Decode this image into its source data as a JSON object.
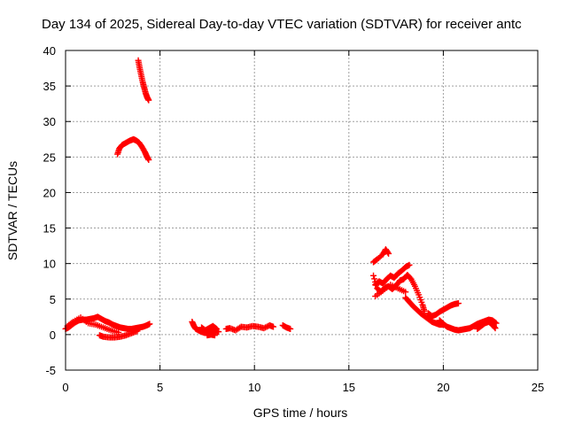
{
  "chart_data": {
    "type": "scatter",
    "title": "Day 134 of 2025, Sidereal Day-to-day VTEC variation (SDTVAR) for receiver antc",
    "xlabel": "GPS time / hours",
    "ylabel": "SDTVAR / TECUs",
    "xlim": [
      0,
      25
    ],
    "ylim": [
      -5,
      40
    ],
    "xticks": [
      "0",
      "5",
      "10",
      "15",
      "20",
      "25"
    ],
    "yticks": [
      "-5",
      "0",
      "5",
      "10",
      "15",
      "20",
      "25",
      "30",
      "35",
      "40"
    ],
    "grid": true,
    "marker": "plus",
    "color": "#ff0000",
    "series": [
      {
        "name": "SDTVAR",
        "segments": [
          [
            [
              3.85,
              38.6
            ],
            [
              3.92,
              37.6
            ],
            [
              4.0,
              36.6
            ],
            [
              4.08,
              35.6
            ],
            [
              4.16,
              34.8
            ],
            [
              4.24,
              34.0
            ],
            [
              4.32,
              33.4
            ],
            [
              4.4,
              33.0
            ]
          ],
          [
            [
              2.75,
              25.4
            ],
            [
              2.85,
              26.2
            ],
            [
              3.0,
              26.7
            ],
            [
              3.2,
              27.0
            ],
            [
              3.4,
              27.3
            ],
            [
              3.6,
              27.5
            ],
            [
              3.75,
              27.3
            ],
            [
              3.9,
              27.0
            ],
            [
              4.05,
              26.4
            ],
            [
              4.2,
              25.7
            ],
            [
              4.3,
              25.1
            ],
            [
              4.4,
              24.6
            ]
          ],
          [
            [
              0.0,
              0.8
            ],
            [
              0.15,
              1.0
            ],
            [
              0.3,
              1.3
            ],
            [
              0.5,
              1.7
            ],
            [
              0.7,
              2.0
            ],
            [
              0.9,
              2.1
            ],
            [
              1.1,
              2.1
            ],
            [
              1.3,
              2.2
            ],
            [
              1.5,
              2.3
            ],
            [
              1.7,
              2.5
            ],
            [
              1.9,
              2.2
            ],
            [
              2.1,
              1.9
            ],
            [
              2.3,
              1.7
            ],
            [
              2.5,
              1.4
            ],
            [
              2.7,
              1.2
            ],
            [
              2.9,
              1.0
            ],
            [
              3.1,
              0.9
            ],
            [
              3.3,
              0.8
            ],
            [
              3.5,
              0.8
            ],
            [
              3.7,
              0.9
            ],
            [
              3.9,
              1.0
            ],
            [
              4.1,
              1.1
            ],
            [
              4.3,
              1.3
            ],
            [
              4.45,
              1.5
            ]
          ],
          [
            [
              0.1,
              1.2
            ],
            [
              0.4,
              1.8
            ],
            [
              0.8,
              2.4
            ],
            [
              1.2,
              1.6
            ],
            [
              1.6,
              1.4
            ],
            [
              2.0,
              1.0
            ],
            [
              2.4,
              0.6
            ],
            [
              2.8,
              0.3
            ]
          ],
          [
            [
              1.8,
              -0.1
            ],
            [
              2.0,
              -0.3
            ],
            [
              2.3,
              -0.4
            ],
            [
              2.6,
              -0.4
            ],
            [
              2.9,
              -0.3
            ],
            [
              3.2,
              -0.1
            ],
            [
              3.5,
              0.2
            ],
            [
              3.8,
              0.5
            ]
          ],
          [
            [
              6.7,
              1.8
            ],
            [
              6.8,
              1.2
            ],
            [
              6.9,
              0.8
            ],
            [
              7.1,
              0.5
            ],
            [
              7.3,
              0.3
            ],
            [
              7.5,
              0.2
            ],
            [
              7.7,
              0.3
            ],
            [
              7.9,
              0.5
            ],
            [
              8.1,
              0.4
            ]
          ],
          [
            [
              7.2,
              1.0
            ],
            [
              7.4,
              0.6
            ],
            [
              7.6,
              0.9
            ],
            [
              7.8,
              1.2
            ],
            [
              8.0,
              0.8
            ],
            [
              7.5,
              -0.1
            ],
            [
              7.7,
              0.0
            ],
            [
              7.9,
              -0.1
            ]
          ],
          [
            [
              8.5,
              0.8
            ],
            [
              8.7,
              0.9
            ],
            [
              9.0,
              0.6
            ],
            [
              9.3,
              1.1
            ],
            [
              9.6,
              1.0
            ],
            [
              9.9,
              1.2
            ],
            [
              10.2,
              1.1
            ],
            [
              10.5,
              0.9
            ],
            [
              10.8,
              1.3
            ],
            [
              11.0,
              1.1
            ]
          ],
          [
            [
              11.5,
              1.3
            ],
            [
              11.7,
              1.0
            ],
            [
              11.9,
              0.8
            ]
          ],
          [
            [
              16.3,
              10.2
            ],
            [
              16.5,
              10.6
            ],
            [
              16.8,
              11.3
            ],
            [
              16.95,
              12.0
            ],
            [
              17.1,
              11.4
            ]
          ],
          [
            [
              16.4,
              7.0
            ],
            [
              16.6,
              7.5
            ],
            [
              16.8,
              7.2
            ],
            [
              17.0,
              7.8
            ],
            [
              17.2,
              8.3
            ],
            [
              17.4,
              8.0
            ],
            [
              17.6,
              8.6
            ],
            [
              17.8,
              9.0
            ],
            [
              18.0,
              9.5
            ],
            [
              18.2,
              9.8
            ]
          ],
          [
            [
              16.3,
              8.3
            ],
            [
              16.5,
              6.5
            ],
            [
              16.7,
              6.0
            ],
            [
              16.9,
              6.6
            ],
            [
              17.1,
              6.8
            ],
            [
              17.3,
              6.4
            ],
            [
              17.5,
              6.9
            ],
            [
              17.7,
              7.6
            ],
            [
              17.9,
              7.8
            ],
            [
              18.1,
              8.4
            ],
            [
              18.3,
              7.8
            ],
            [
              18.5,
              6.8
            ],
            [
              18.7,
              5.6
            ],
            [
              18.9,
              4.2
            ],
            [
              19.0,
              3.3
            ]
          ],
          [
            [
              16.4,
              5.4
            ],
            [
              16.8,
              6.2
            ],
            [
              17.2,
              7.0
            ],
            [
              17.6,
              6.5
            ],
            [
              18.0,
              6.0
            ]
          ],
          [
            [
              18.0,
              5.2
            ],
            [
              18.2,
              4.6
            ],
            [
              18.4,
              4.0
            ],
            [
              18.6,
              3.5
            ],
            [
              18.8,
              3.0
            ],
            [
              19.0,
              2.6
            ],
            [
              19.2,
              2.2
            ],
            [
              19.4,
              1.8
            ],
            [
              19.6,
              1.6
            ],
            [
              19.8,
              1.4
            ],
            [
              20.0,
              1.4
            ]
          ],
          [
            [
              19.2,
              3.0
            ],
            [
              19.4,
              2.6
            ],
            [
              19.6,
              2.8
            ],
            [
              19.8,
              3.2
            ],
            [
              20.0,
              3.5
            ],
            [
              20.2,
              3.8
            ],
            [
              20.4,
              4.1
            ],
            [
              20.6,
              4.3
            ],
            [
              20.8,
              4.4
            ]
          ],
          [
            [
              19.8,
              2.0
            ],
            [
              20.0,
              1.5
            ],
            [
              20.2,
              1.1
            ],
            [
              20.4,
              0.9
            ],
            [
              20.6,
              0.7
            ],
            [
              20.8,
              0.6
            ],
            [
              21.0,
              0.7
            ],
            [
              21.2,
              0.8
            ],
            [
              21.4,
              0.9
            ],
            [
              21.6,
              1.2
            ],
            [
              21.8,
              1.5
            ],
            [
              22.0,
              1.7
            ],
            [
              22.2,
              1.9
            ],
            [
              22.4,
              2.1
            ],
            [
              22.6,
              2.0
            ],
            [
              22.8,
              1.6
            ]
          ],
          [
            [
              21.8,
              0.8
            ],
            [
              22.0,
              1.2
            ],
            [
              22.2,
              1.6
            ],
            [
              22.4,
              1.8
            ],
            [
              22.6,
              1.4
            ],
            [
              22.75,
              0.9
            ]
          ]
        ]
      }
    ]
  }
}
